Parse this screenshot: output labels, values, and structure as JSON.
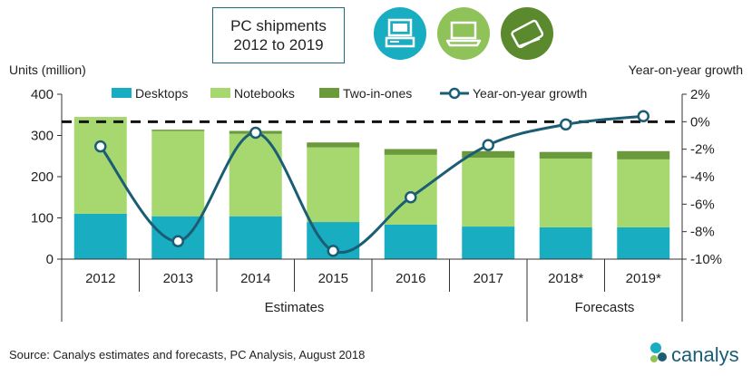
{
  "title_lines": [
    "PC shipments",
    "2012 to 2019"
  ],
  "source": "Source:  Canalys estimates and forecasts, PC Analysis, August 2018",
  "brand": "canalys",
  "colors": {
    "desktops": "#19adc1",
    "notebooks": "#a7d86f",
    "two_in_ones": "#6a9a3c",
    "growth_line": "#1a5d74",
    "icon_teal": "#19adc1",
    "icon_green": "#8fc35a",
    "icon_dark_green": "#5b8a2e"
  },
  "icons": [
    "desktop-computer-icon",
    "laptop-icon",
    "tablet-icon"
  ],
  "chart_data": {
    "type": "bar",
    "stacked": true,
    "categories": [
      "2012",
      "2013",
      "2014",
      "2015",
      "2016",
      "2017",
      "2018*",
      "2019*"
    ],
    "category_groups": [
      {
        "label": "Estimates",
        "categories": [
          "2012",
          "2013",
          "2014",
          "2015",
          "2016",
          "2017"
        ]
      },
      {
        "label": "Forecasts",
        "categories": [
          "2018*",
          "2019*"
        ]
      }
    ],
    "ylabel": "Units (million)",
    "ylim": [
      0,
      400
    ],
    "yticks": [
      0,
      100,
      200,
      300,
      400
    ],
    "y2label": "Year-on-year growth",
    "y2lim": [
      -10,
      2
    ],
    "y2ticks": [
      "2%",
      "0%",
      "-2%",
      "-4%",
      "-6%",
      "-8%",
      "-10%"
    ],
    "y2tick_values": [
      2,
      0,
      -2,
      -4,
      -6,
      -8,
      -10
    ],
    "series": [
      {
        "name": "Desktops",
        "values": [
          110,
          104,
          104,
          90,
          84,
          79,
          77,
          77
        ]
      },
      {
        "name": "Notebooks",
        "values": [
          235,
          207,
          200,
          181,
          169,
          167,
          167,
          165
        ]
      },
      {
        "name": "Two-in-ones",
        "values": [
          0,
          3,
          7,
          12,
          14,
          16,
          16,
          20
        ]
      },
      {
        "name": "Year-on-year growth",
        "type": "line",
        "axis": "right",
        "values": [
          -1.8,
          -8.7,
          -0.8,
          -9.4,
          -5.5,
          -1.7,
          -0.2,
          0.4
        ]
      }
    ],
    "reference_line": {
      "axis": "right",
      "value": 0,
      "style": "dashed"
    },
    "legend": "top",
    "grid": false
  }
}
